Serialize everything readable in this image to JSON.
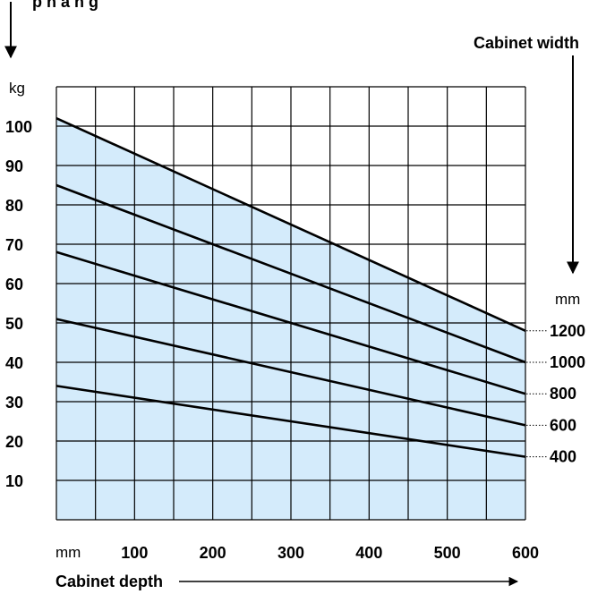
{
  "chart_data": {
    "type": "line",
    "title": "",
    "xlabel": "Cabinet depth",
    "x_unit": "mm",
    "ylabel_fragment": "p     n    a        h   g",
    "y_unit": "kg",
    "legend_title": "Cabinet width",
    "legend_unit": "mm",
    "xlim": [
      0,
      600
    ],
    "ylim": [
      0,
      110
    ],
    "x_ticks": [
      "100",
      "200",
      "300",
      "400",
      "500",
      "600"
    ],
    "y_ticks": [
      "100",
      "90",
      "80",
      "70",
      "60",
      "50",
      "40",
      "30",
      "20",
      "10"
    ],
    "grid": true,
    "fill_color": "#d4ebfb",
    "x": [
      0,
      600
    ],
    "series": [
      {
        "name": "1200",
        "values": [
          102,
          48
        ]
      },
      {
        "name": "1000",
        "values": [
          85,
          40
        ]
      },
      {
        "name": "800",
        "values": [
          68,
          32
        ]
      },
      {
        "name": "600",
        "values": [
          51,
          24
        ]
      },
      {
        "name": "400",
        "values": [
          34,
          16
        ]
      }
    ]
  }
}
